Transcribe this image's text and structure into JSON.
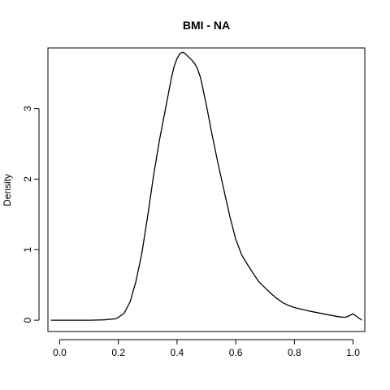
{
  "chart_data": {
    "type": "line",
    "title": "BMI - NA",
    "xlabel": "",
    "ylabel": "Density",
    "xlim": [
      -0.04,
      1.04
    ],
    "ylim": [
      -0.16,
      3.86
    ],
    "x_ticks": [
      0.0,
      0.2,
      0.4,
      0.6,
      0.8,
      1.0
    ],
    "x_tick_labels": [
      "0.0",
      "0.2",
      "0.4",
      "0.6",
      "0.8",
      "1.0"
    ],
    "y_ticks": [
      0,
      1,
      2,
      3
    ],
    "y_tick_labels": [
      "0",
      "1",
      "2",
      "3"
    ],
    "grid": false,
    "legend": "none",
    "line_color": "#000000",
    "series": [
      {
        "x": [
          -0.03,
          0.0,
          0.05,
          0.1,
          0.15,
          0.19,
          0.2,
          0.22,
          0.24,
          0.26,
          0.28,
          0.3,
          0.32,
          0.34,
          0.36,
          0.38,
          0.39,
          0.4,
          0.41,
          0.42,
          0.43,
          0.44,
          0.45,
          0.46,
          0.47,
          0.48,
          0.5,
          0.52,
          0.54,
          0.56,
          0.58,
          0.6,
          0.62,
          0.64,
          0.66,
          0.68,
          0.7,
          0.72,
          0.74,
          0.76,
          0.78,
          0.8,
          0.85,
          0.9,
          0.95,
          0.97,
          0.98,
          0.99,
          1.0,
          1.01,
          1.03
        ],
        "y": [
          0.0,
          0.0,
          0.0,
          0.0,
          0.005,
          0.02,
          0.04,
          0.1,
          0.26,
          0.55,
          0.95,
          1.48,
          2.05,
          2.55,
          2.98,
          3.42,
          3.6,
          3.71,
          3.78,
          3.8,
          3.77,
          3.73,
          3.69,
          3.64,
          3.56,
          3.44,
          3.05,
          2.62,
          2.22,
          1.84,
          1.47,
          1.15,
          0.93,
          0.79,
          0.66,
          0.54,
          0.46,
          0.38,
          0.31,
          0.25,
          0.21,
          0.18,
          0.13,
          0.09,
          0.05,
          0.04,
          0.05,
          0.07,
          0.09,
          0.06,
          0.0
        ]
      }
    ]
  }
}
